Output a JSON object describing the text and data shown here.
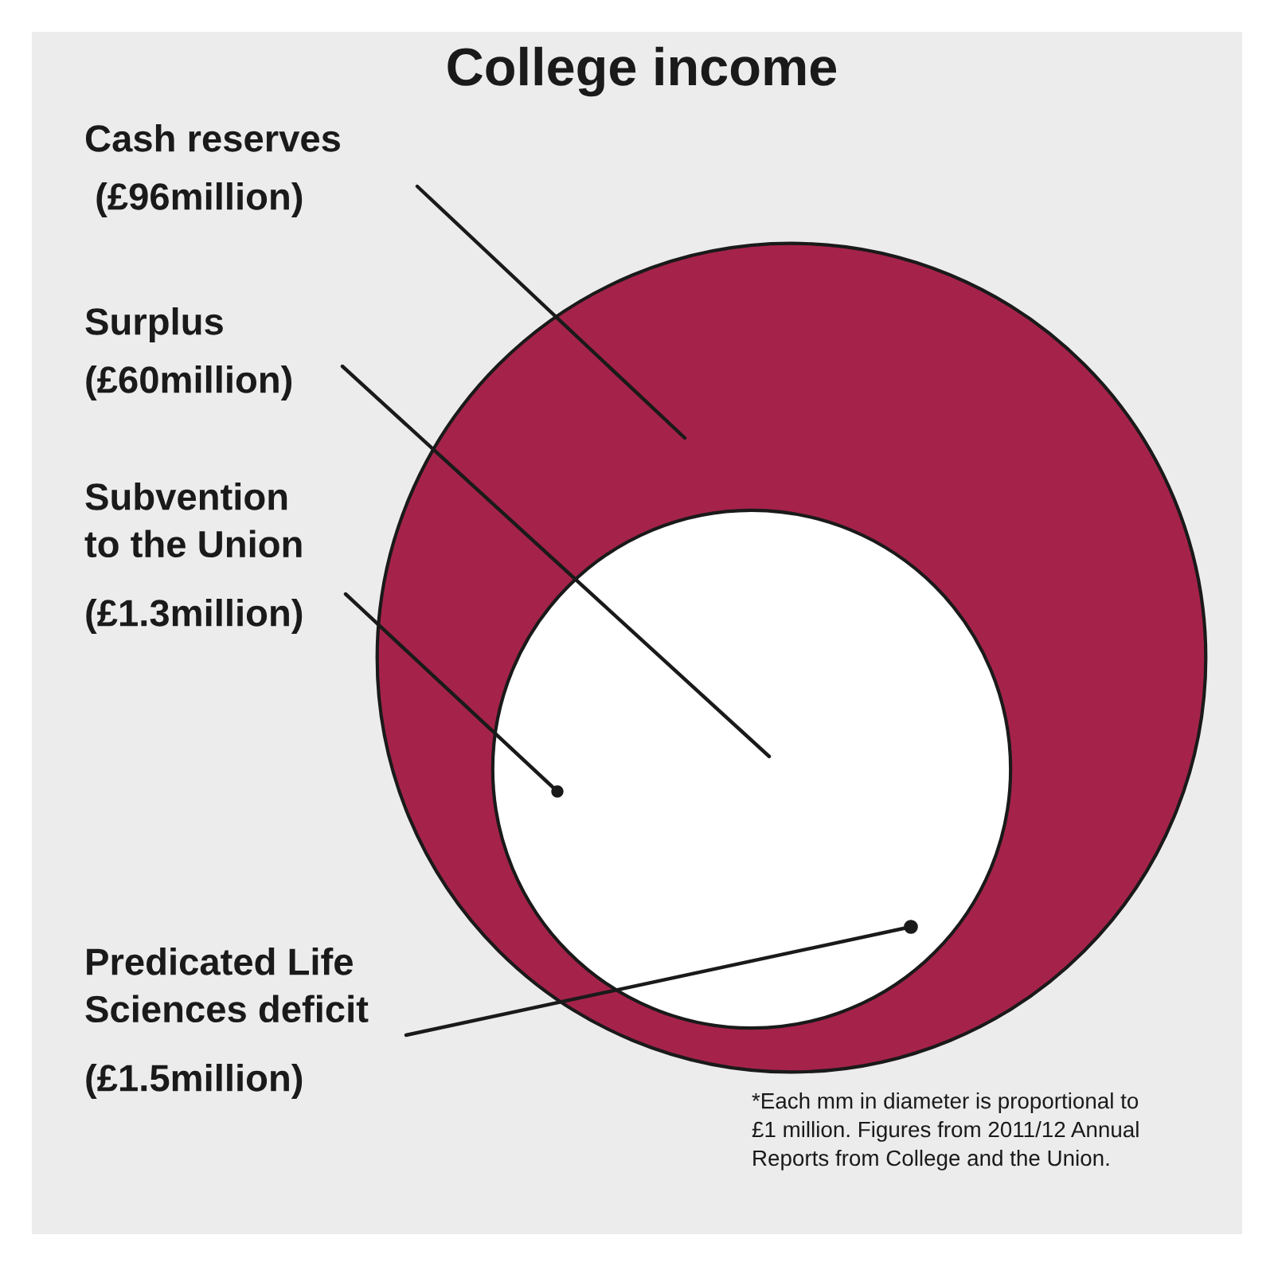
{
  "chart_data": {
    "type": "other",
    "title": "College income",
    "categories": [
      "Cash reserves",
      "Surplus",
      "Subvention\nto the Union",
      "Predicated Life\nSciences deficit"
    ],
    "value_labels": [
      " (£96million)",
      "(£60million)",
      "(£1.3million)",
      "(£1.5million)"
    ],
    "values": [
      96,
      60,
      1.3,
      1.5
    ],
    "colors": [
      "#a5234b",
      "#ffffff",
      "#1a1a1a",
      "#1a1a1a"
    ],
    "annotations": [
      "*Each mm in diameter is proportional to\n£1 million. Figures from 2011/12 Annual\nReports from College and the Union."
    ]
  }
}
